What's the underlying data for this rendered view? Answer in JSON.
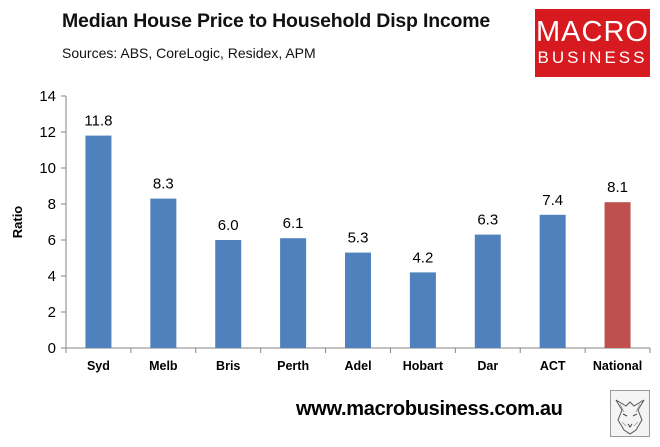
{
  "header": {
    "title": "Median House Price to Household Disp Income",
    "subtitle": "Sources: ABS, CoreLogic, Residex, APM"
  },
  "logo": {
    "line1": "MACRO",
    "line2": "BUSINESS"
  },
  "footer": {
    "url": "www.macrobusiness.com.au"
  },
  "colors": {
    "bar": "#4f81bd",
    "highlight": "#c0504d",
    "logo_bg": "#d71920"
  },
  "icons": {
    "footer": "wolf-sketch-icon"
  },
  "chart_data": {
    "type": "bar",
    "title": "Median House Price to Household Disp Income",
    "xlabel": "",
    "ylabel": "Ratio",
    "categories": [
      "Syd",
      "Melb",
      "Bris",
      "Perth",
      "Adel",
      "Hobart",
      "Dar",
      "ACT",
      "National"
    ],
    "values": [
      11.8,
      8.3,
      6.0,
      6.1,
      5.3,
      4.2,
      6.3,
      7.4,
      8.1
    ],
    "labels": [
      "11.8",
      "8.3",
      "6.0",
      "6.1",
      "5.3",
      "4.2",
      "6.3",
      "7.4",
      "8.1"
    ],
    "highlight_category": "National",
    "ylim": [
      0,
      14
    ],
    "yticks": [
      0,
      2,
      4,
      6,
      8,
      10,
      12,
      14
    ],
    "grid": false,
    "legend": "none"
  }
}
